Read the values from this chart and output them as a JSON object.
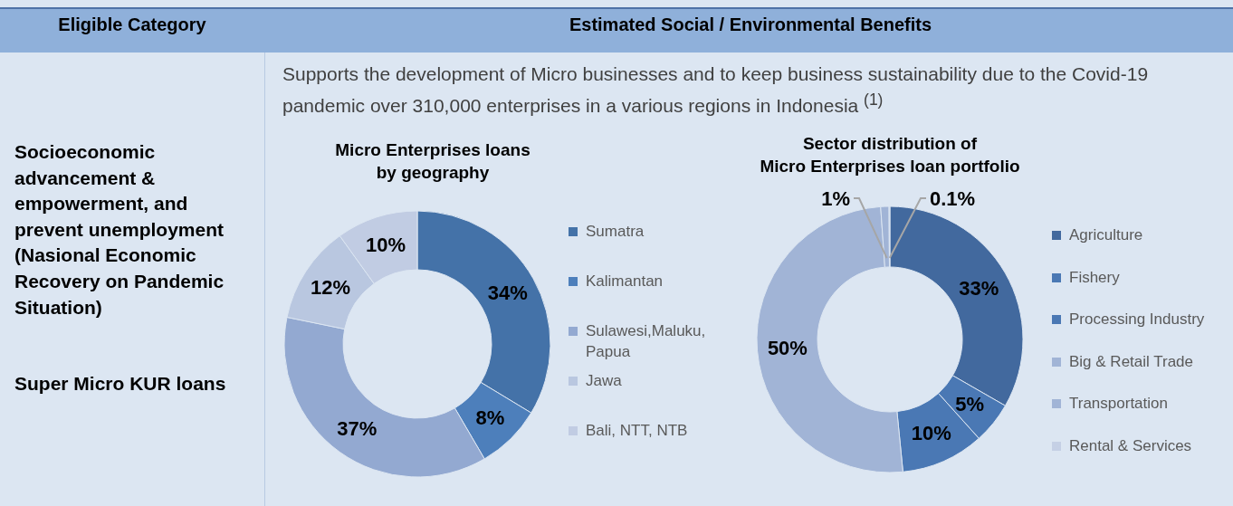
{
  "chart_data": [
    {
      "type": "other",
      "annotations": [
        "Eligible Category",
        "Estimated Social / Environmental Benefits",
        "Socioeconomic advancement & empowerment, and prevent unemployment (Nasional Economic Recovery on Pandemic Situation)",
        "Super Micro KUR loans",
        "Supports the development of Micro businesses and to keep business sustainability due to the Covid-19 pandemic over 310,000 enterprises in a various regions in Indonesia $^{(1)}$"
      ]
    },
    {
      "type": "donut",
      "title": "Micro Enterprises loans\nby geography",
      "legend": "right",
      "categories": [
        "Sumatra",
        "Kalimantan",
        "Sulawesi,Maluku, Papua",
        "Jawa",
        "Bali, NTT, NTB"
      ],
      "values": [
        34,
        8,
        37,
        12,
        10
      ],
      "value_labels": [
        "34%",
        "8%",
        "37%",
        "12%",
        "10%"
      ],
      "colors": [
        "#4472a8",
        "#4d7fbb",
        "#93a9d1",
        "#b9c7e0",
        "#c1cce3"
      ]
    },
    {
      "type": "donut",
      "title": "Sector distribution of\nMicro Enterprises loan portfolio",
      "legend": "right",
      "categories": [
        "Agriculture",
        "Fishery",
        "Processing Industry",
        "Big & Retail Trade",
        "Transportation",
        "Rental & Services"
      ],
      "values": [
        33,
        5,
        10,
        50,
        1,
        0.1
      ],
      "value_labels": [
        "33%",
        "5%",
        "10%",
        "50%",
        "1%",
        "0.1%"
      ],
      "colors": [
        "#42699e",
        "#4a78b4",
        "#4a78b4",
        "#a1b4d6",
        "#a1b4d6",
        "#c5d0e5"
      ]
    }
  ]
}
